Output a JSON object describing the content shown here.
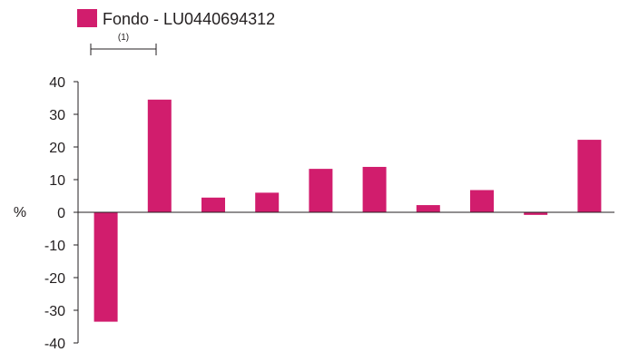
{
  "chart_data": {
    "type": "bar",
    "categories": [
      "",
      "",
      "",
      "",
      "",
      "",
      "",
      "",
      "",
      ""
    ],
    "series": [
      {
        "name": "Fondo - LU0440694312",
        "color": "#d11d6d",
        "values": [
          -33.5,
          34.5,
          4.5,
          6,
          13.3,
          13.9,
          2.2,
          6.8,
          -0.8,
          22.2
        ]
      }
    ],
    "title": "",
    "xlabel": "",
    "ylabel": "%",
    "ylim": [
      -40,
      40
    ],
    "yticks": [
      "40",
      "30",
      "20",
      "10",
      "0",
      "-10",
      "-20",
      "-30",
      "-40"
    ],
    "grid": false,
    "legend": "top-left",
    "annotation": "(1)"
  }
}
